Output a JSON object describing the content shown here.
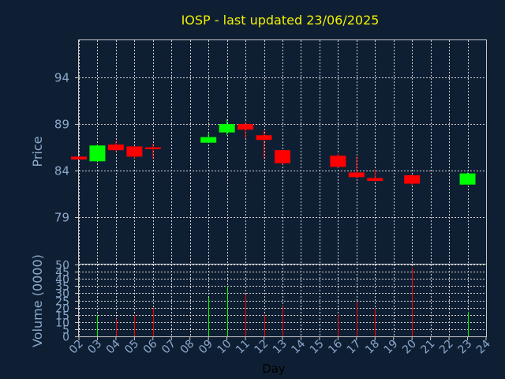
{
  "chart_data": [
    {
      "type": "candlestick",
      "title": "IOSP - last updated 23/06/2025",
      "ylabel": "Price",
      "ylim": [
        74,
        98
      ],
      "yticks": [
        "79",
        "84",
        "89",
        "94"
      ],
      "grid": true,
      "up_color": "#00ff00",
      "down_color": "#ff0000",
      "candles": [
        {
          "day": "02",
          "open": 85.5,
          "high": 85.5,
          "low": 85.2,
          "close": 85.2
        },
        {
          "day": "03",
          "open": 85.0,
          "high": 86.8,
          "low": 84.9,
          "close": 86.7
        },
        {
          "day": "04",
          "open": 86.8,
          "high": 87.2,
          "low": 86.0,
          "close": 86.2
        },
        {
          "day": "05",
          "open": 86.6,
          "high": 86.6,
          "low": 85.3,
          "close": 85.5
        },
        {
          "day": "06",
          "open": 86.5,
          "high": 86.9,
          "low": 85.3,
          "close": 86.3
        },
        {
          "day": "09",
          "open": 87.0,
          "high": 88.0,
          "low": 87.0,
          "close": 87.6
        },
        {
          "day": "10",
          "open": 88.1,
          "high": 89.5,
          "low": 87.8,
          "close": 89.0
        },
        {
          "day": "11",
          "open": 89.0,
          "high": 89.2,
          "low": 87.5,
          "close": 88.4
        },
        {
          "day": "12",
          "open": 87.8,
          "high": 88.3,
          "low": 85.3,
          "close": 87.3
        },
        {
          "day": "13",
          "open": 86.2,
          "high": 86.2,
          "low": 84.6,
          "close": 84.8
        },
        {
          "day": "16",
          "open": 85.6,
          "high": 85.8,
          "low": 84.3,
          "close": 84.4
        },
        {
          "day": "17",
          "open": 83.8,
          "high": 85.5,
          "low": 83.2,
          "close": 83.3
        },
        {
          "day": "18",
          "open": 83.2,
          "high": 84.1,
          "low": 82.8,
          "close": 82.9
        },
        {
          "day": "20",
          "open": 83.5,
          "high": 83.6,
          "low": 82.4,
          "close": 82.6
        },
        {
          "day": "23",
          "open": 82.5,
          "high": 83.8,
          "low": 82.5,
          "close": 83.7
        }
      ]
    },
    {
      "type": "bar",
      "ylabel": "Volume (0000)",
      "xlabel": "Day",
      "ylim": [
        0,
        50
      ],
      "yticks": [
        "0",
        "5",
        "10",
        "15",
        "20",
        "25",
        "30",
        "35",
        "40",
        "45",
        "50"
      ],
      "categories": [
        "02",
        "03",
        "04",
        "05",
        "06",
        "07",
        "08",
        "09",
        "10",
        "11",
        "12",
        "13",
        "14",
        "15",
        "16",
        "17",
        "18",
        "19",
        "20",
        "21",
        "22",
        "23",
        "24"
      ],
      "values": [
        {
          "day": "03",
          "volume": 15,
          "color": "#00ff00"
        },
        {
          "day": "04",
          "volume": 12,
          "color": "#ff0000"
        },
        {
          "day": "05",
          "volume": 15,
          "color": "#ff0000"
        },
        {
          "day": "06",
          "volume": 20,
          "color": "#ff0000"
        },
        {
          "day": "09",
          "volume": 27,
          "color": "#00ff00"
        },
        {
          "day": "10",
          "volume": 35,
          "color": "#00ff00"
        },
        {
          "day": "11",
          "volume": 29,
          "color": "#ff0000"
        },
        {
          "day": "12",
          "volume": 15,
          "color": "#ff0000"
        },
        {
          "day": "13",
          "volume": 21,
          "color": "#ff0000"
        },
        {
          "day": "16",
          "volume": 15,
          "color": "#ff0000"
        },
        {
          "day": "17",
          "volume": 24,
          "color": "#ff0000"
        },
        {
          "day": "18",
          "volume": 19,
          "color": "#ff0000"
        },
        {
          "day": "20",
          "volume": 48,
          "color": "#ff0000"
        },
        {
          "day": "23",
          "volume": 17,
          "color": "#00ff00"
        }
      ]
    }
  ]
}
